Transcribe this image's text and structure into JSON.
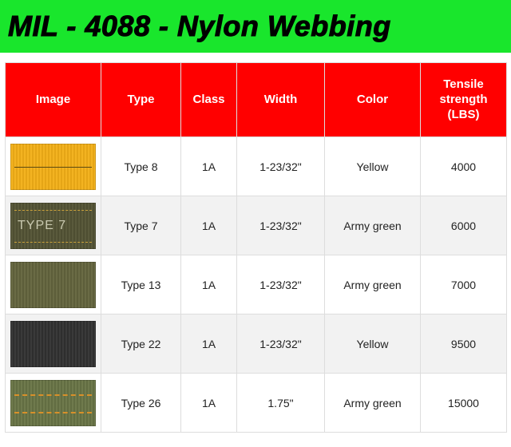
{
  "header": {
    "title": "MIL - 4088 - Nylon Webbing",
    "background_color": "#19e62c",
    "text_color": "#000000",
    "text_stroke": "#000000"
  },
  "table": {
    "header_bg": "#ff0000",
    "header_text_color": "#ffffff",
    "row_alt_bg": "#f2f2f2",
    "row_bg": "#ffffff",
    "border_color": "#dddddd",
    "columns": [
      "Image",
      "Type",
      "Class",
      "Width",
      "Color",
      "Tensile strength (LBS)"
    ],
    "rows": [
      {
        "type": "Type 8",
        "class": "1A",
        "width": "1-23/32\"",
        "color": "Yellow",
        "tensile": "4000",
        "swatch": {
          "bg": "#f3b321",
          "texture": "repeating-linear-gradient(90deg,#f3b321 0 2px,#e5a516 2px 4px)",
          "stitches": [
            {
              "top": "50%",
              "style": "1px solid #5b4a12"
            }
          ],
          "label": ""
        }
      },
      {
        "type": "Type 7",
        "class": "1A",
        "width": "1-23/32\"",
        "color": "Army green",
        "tensile": "6000",
        "swatch": {
          "bg": "#5a5a3c",
          "texture": "repeating-linear-gradient(90deg,#5a5a3c 0 2px,#4e4e32 2px 4px)",
          "stitches": [
            {
              "top": "14%",
              "style": "1px dashed #caa13a"
            },
            {
              "top": "86%",
              "style": "1px dashed #caa13a"
            }
          ],
          "label": "TYPE 7"
        }
      },
      {
        "type": "Type 13",
        "class": "1A",
        "width": "1-23/32\"",
        "color": "Army green",
        "tensile": "7000",
        "swatch": {
          "bg": "#6a6b45",
          "texture": "repeating-linear-gradient(90deg,#6a6b45 0 2px,#5d5e3a 2px 4px)",
          "stitches": [],
          "label": ""
        }
      },
      {
        "type": "Type 22",
        "class": "1A",
        "width": "1-23/32\"",
        "color": "Yellow",
        "tensile": "9500",
        "swatch": {
          "bg": "#3a3a3a",
          "texture": "repeating-linear-gradient(90deg,#3a3a3a 0 2px,#2e2e2e 2px 4px)",
          "stitches": [],
          "label": ""
        }
      },
      {
        "type": "Type 26",
        "class": "1A",
        "width": "1.75\"",
        "color": "Army green",
        "tensile": "15000",
        "swatch": {
          "bg": "#6f7a4d",
          "texture": "repeating-linear-gradient(90deg,#6f7a4d 0 2px,#626d42 2px 4px)",
          "stitches": [
            {
              "top": "30%",
              "style": "2px dashed #d8902a"
            },
            {
              "top": "70%",
              "style": "2px dashed #d8902a"
            }
          ],
          "label": ""
        }
      }
    ]
  }
}
